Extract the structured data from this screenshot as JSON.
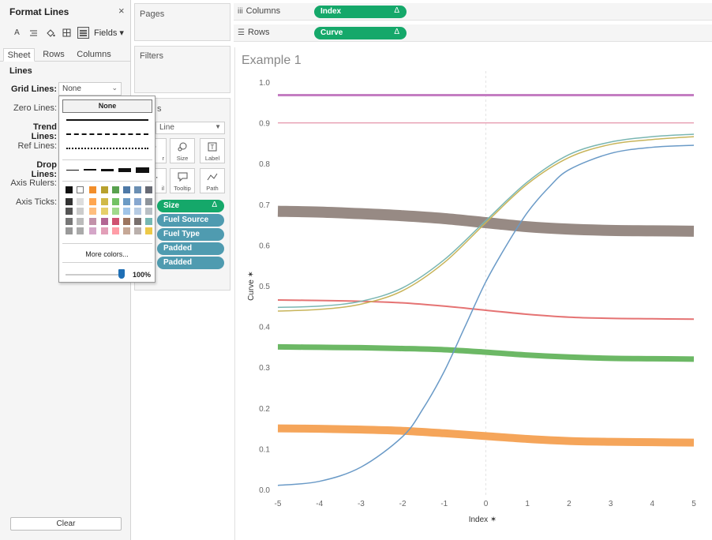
{
  "format_pane": {
    "title": "Format Lines",
    "close": "×",
    "fields_label": "Fields ▾",
    "toolbar_icons": [
      "font-icon",
      "alignment-icon",
      "shading-icon",
      "borders-icon",
      "lines-icon"
    ],
    "tabs": [
      "Sheet",
      "Rows",
      "Columns"
    ],
    "active_tab": "Sheet",
    "section": "Lines",
    "rows": [
      {
        "label": "Grid Lines:",
        "bold": true
      },
      {
        "label": "Zero Lines:",
        "bold": false
      },
      {
        "label": "Trend Lines:",
        "bold": true
      },
      {
        "label": "Ref Lines:",
        "bold": false
      },
      {
        "label": "Drop Lines:",
        "bold": true
      },
      {
        "label": "Axis Rulers:",
        "bold": false
      },
      {
        "label": "Axis Ticks:",
        "bold": false
      }
    ],
    "grid_lines_value": "None",
    "clear_button": "Clear"
  },
  "line_popup": {
    "none_option": "None",
    "more_colors": "More colors...",
    "opacity": "100%",
    "colors": {
      "top_row": [
        "#111111",
        "#ffffff",
        "#f28e2b",
        "#b8a12e",
        "#59a14f",
        "#4e79a7",
        "#6b8fb3",
        "#676a74"
      ],
      "grays": [
        "#333333",
        "#555555",
        "#777777",
        "#999999"
      ],
      "light_grays": [
        "#dddddd",
        "#cccccc",
        "#bbbbbb",
        "#aaaaaa"
      ],
      "col_orange": [
        "#ffa650",
        "#ffbe7d",
        "#c291a9",
        "#d4a6c8"
      ],
      "col_olive": [
        "#d0b947",
        "#e6cf6a",
        "#b36593",
        "#e29fb8"
      ],
      "col_green": [
        "#73c265",
        "#a0d98c",
        "#d05271",
        "#ff9da7"
      ],
      "col_blue": [
        "#6b9ac4",
        "#a0c4e8",
        "#9c755f",
        "#c6a896"
      ],
      "col_lightblue": [
        "#87a7cf",
        "#b6cbe3",
        "#79706e",
        "#bab0ac"
      ],
      "col_teal": [
        "#8e949b",
        "#b8bfc4",
        "#76b7b2",
        "#edc948"
      ]
    }
  },
  "pages_card": {
    "title": "Pages"
  },
  "filters_card": {
    "title": "Filters"
  },
  "marks_card": {
    "title_fragment": "s",
    "mark_type": "Line",
    "buttons": [
      {
        "label": "r",
        "icon": "color-icon"
      },
      {
        "label": "Size",
        "icon": "size-icon"
      },
      {
        "label": "Label",
        "icon": "label-icon"
      },
      {
        "label": "il",
        "icon": "detail-icon"
      },
      {
        "label": "Tooltip",
        "icon": "tooltip-icon"
      },
      {
        "label": "Path",
        "icon": "path-icon"
      }
    ],
    "pills": [
      {
        "label": "Size",
        "color": "green",
        "delta": "Δ"
      },
      {
        "label": "Fuel Source",
        "color": "blue"
      },
      {
        "label": "Fuel Type",
        "color": "blue"
      },
      {
        "label": "Padded",
        "color": "blue"
      },
      {
        "label": "Padded",
        "color": "blue"
      }
    ]
  },
  "shelves": {
    "columns": {
      "label": "Columns",
      "icon": "columns-icon",
      "pill": "Index",
      "delta": "Δ"
    },
    "rows": {
      "label": "Rows",
      "icon": "rows-icon",
      "pill": "Curve",
      "delta": "Δ"
    }
  },
  "view": {
    "sheet_title": "Example 1"
  },
  "chart_data": {
    "type": "line",
    "xlabel": "Index",
    "ylabel": "Curve",
    "xlim": [
      -5,
      5
    ],
    "ylim": [
      0,
      1
    ],
    "xticks": [
      -5,
      -4,
      -3,
      -2,
      -1,
      0,
      1,
      2,
      3,
      4,
      5
    ],
    "yticks": [
      0.0,
      0.1,
      0.2,
      0.3,
      0.4,
      0.5,
      0.6,
      0.7,
      0.8,
      0.9,
      1.0
    ],
    "ytick_labels": [
      "0.0",
      "0.1",
      "0.2",
      "0.3",
      "0.4",
      "0.5",
      "0.6",
      "0.7",
      "0.8",
      "0.9",
      "1.0"
    ],
    "zero_line": "vertical dashed at x=0",
    "series": [
      {
        "color": "#c47dc2",
        "width": 3,
        "x": [
          -5,
          0,
          5
        ],
        "y": [
          0.968,
          0.968,
          0.968
        ]
      },
      {
        "color": "#e8a0b4",
        "width": 1.5,
        "x": [
          -5,
          0,
          5
        ],
        "y": [
          0.9,
          0.9,
          0.9
        ]
      },
      {
        "color": "#978a84",
        "width": 14,
        "x": [
          -5,
          -4,
          -3,
          -2,
          -1,
          0,
          1,
          2,
          3,
          4,
          5
        ],
        "y": [
          0.683,
          0.681,
          0.677,
          0.672,
          0.665,
          0.655,
          0.645,
          0.639,
          0.636,
          0.635,
          0.634
        ]
      },
      {
        "color": "#e57373",
        "width": 2,
        "x": [
          -5,
          -4,
          -3,
          -2,
          -1,
          0,
          1,
          2,
          3,
          4,
          5
        ],
        "y": [
          0.465,
          0.464,
          0.462,
          0.458,
          0.45,
          0.44,
          0.43,
          0.423,
          0.42,
          0.419,
          0.418
        ]
      },
      {
        "color": "#6cb865",
        "width": 7,
        "x": [
          -5,
          -4,
          -3,
          -2,
          -1,
          0,
          1,
          2,
          3,
          4,
          5
        ],
        "y": [
          0.35,
          0.349,
          0.348,
          0.346,
          0.343,
          0.337,
          0.33,
          0.325,
          0.322,
          0.321,
          0.32
        ]
      },
      {
        "color": "#f5a55a",
        "width": 10,
        "x": [
          -5,
          -4,
          -3,
          -2,
          -1,
          0,
          1,
          2,
          3,
          4,
          5
        ],
        "y": [
          0.15,
          0.149,
          0.147,
          0.144,
          0.138,
          0.131,
          0.124,
          0.119,
          0.117,
          0.116,
          0.115
        ]
      },
      {
        "color": "#7ab6b2",
        "width": 1.5,
        "x": [
          -5,
          -4,
          -3,
          -2,
          -1,
          0,
          1,
          2,
          3,
          4,
          5
        ],
        "y": [
          0.447,
          0.45,
          0.462,
          0.495,
          0.564,
          0.66,
          0.755,
          0.822,
          0.853,
          0.866,
          0.872
        ]
      },
      {
        "color": "#c8b45a",
        "width": 1.5,
        "x": [
          -5,
          -4,
          -3,
          -2,
          -1,
          0,
          1,
          2,
          3,
          4,
          5
        ],
        "y": [
          0.438,
          0.442,
          0.455,
          0.488,
          0.557,
          0.655,
          0.75,
          0.815,
          0.847,
          0.859,
          0.866
        ]
      },
      {
        "color": "#6a9ac7",
        "width": 1.5,
        "x": [
          -5,
          -4,
          -3,
          -2,
          -1.5,
          -1,
          -0.5,
          0,
          0.5,
          1,
          1.5,
          2,
          3,
          4,
          5
        ],
        "y": [
          0.01,
          0.02,
          0.055,
          0.13,
          0.2,
          0.29,
          0.4,
          0.51,
          0.6,
          0.68,
          0.74,
          0.785,
          0.825,
          0.84,
          0.845
        ]
      }
    ]
  }
}
